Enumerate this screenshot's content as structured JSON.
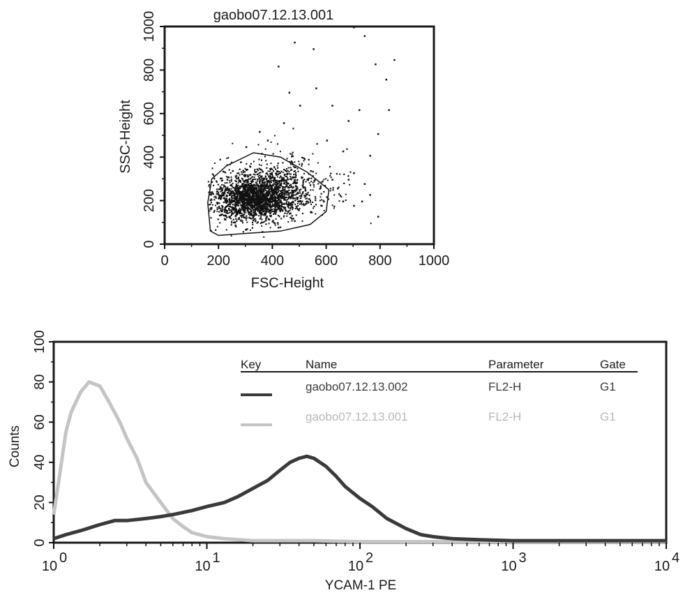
{
  "chart_data": [
    {
      "type": "scatter",
      "title": "gaobo07.12.13.001",
      "xlabel": "FSC-Height",
      "ylabel": "SSC-Height",
      "xlim": [
        0,
        1000
      ],
      "ylim": [
        0,
        1000
      ],
      "xticks": [
        "0",
        "200",
        "400",
        "600",
        "800",
        "1000"
      ],
      "yticks": [
        "0",
        "200",
        "400",
        "600",
        "800",
        "1000"
      ],
      "grid": false,
      "dense_cluster": {
        "x_center": 330,
        "y_center": 210,
        "x_spread": 75,
        "y_spread": 50
      },
      "points": [
        [
          420,
          820
        ],
        [
          480,
          930
        ],
        [
          550,
          900
        ],
        [
          700,
          1000
        ],
        [
          740,
          960
        ],
        [
          780,
          830
        ],
        [
          850,
          850
        ],
        [
          820,
          760
        ],
        [
          830,
          620
        ],
        [
          790,
          510
        ],
        [
          760,
          410
        ],
        [
          720,
          620
        ],
        [
          560,
          720
        ],
        [
          620,
          640
        ],
        [
          680,
          570
        ],
        [
          500,
          640
        ],
        [
          460,
          700
        ],
        [
          440,
          560
        ],
        [
          600,
          480
        ],
        [
          660,
          430
        ],
        [
          700,
          330
        ],
        [
          740,
          280
        ],
        [
          620,
          300
        ],
        [
          540,
          340
        ],
        [
          480,
          300
        ],
        [
          520,
          250
        ],
        [
          600,
          220
        ],
        [
          660,
          200
        ],
        [
          700,
          180
        ],
        [
          760,
          230
        ],
        [
          380,
          480
        ],
        [
          350,
          520
        ],
        [
          300,
          450
        ],
        [
          280,
          380
        ],
        [
          250,
          340
        ],
        [
          230,
          300
        ],
        [
          210,
          250
        ],
        [
          200,
          170
        ],
        [
          220,
          120
        ],
        [
          260,
          90
        ],
        [
          300,
          70
        ],
        [
          360,
          60
        ],
        [
          420,
          80
        ],
        [
          480,
          110
        ],
        [
          540,
          150
        ],
        [
          580,
          180
        ],
        [
          640,
          260
        ],
        [
          680,
          300
        ],
        [
          730,
          200
        ],
        [
          790,
          130
        ]
      ]
    },
    {
      "type": "line",
      "xlabel": "YCAM-1 PE",
      "ylabel": "Counts",
      "xscale": "log",
      "xlim": [
        1,
        10000
      ],
      "ylim": [
        0,
        100
      ],
      "xticks": [
        "10^0",
        "10^1",
        "10^2",
        "10^3",
        "10^4"
      ],
      "yticks": [
        "0",
        "20",
        "40",
        "60",
        "80",
        "100"
      ],
      "grid": false,
      "legend": {
        "position": "top-right",
        "headers": [
          "Key",
          "Name",
          "Parameter",
          "Gate"
        ],
        "rows": [
          {
            "name": "gaobo07.12.13.002",
            "parameter": "FL2-H",
            "gate": "G1",
            "color": "#3a3a3a"
          },
          {
            "name": "gaobo07.12.13.001",
            "parameter": "FL2-H",
            "gate": "G1",
            "color": "#c4c4c4"
          }
        ]
      },
      "series": [
        {
          "name": "gaobo07.12.13.002",
          "color": "#3a3a3a",
          "x": [
            1,
            1.2,
            1.5,
            2,
            2.5,
            3,
            4,
            5,
            6,
            8,
            10,
            13,
            16,
            20,
            25,
            30,
            35,
            40,
            45,
            50,
            60,
            70,
            80,
            100,
            120,
            150,
            200,
            250,
            300,
            400,
            600,
            1000,
            2000,
            5000,
            10000
          ],
          "y": [
            2,
            4,
            6,
            9,
            11,
            11,
            12,
            13,
            14,
            16,
            18,
            20,
            23,
            27,
            31,
            36,
            40,
            42,
            43,
            42,
            38,
            33,
            28,
            22,
            18,
            12,
            7,
            4,
            3,
            2,
            1.5,
            1,
            1,
            1,
            1
          ]
        },
        {
          "name": "gaobo07.12.13.001",
          "color": "#c4c4c4",
          "x": [
            1,
            1.1,
            1.2,
            1.3,
            1.5,
            1.7,
            2,
            2.3,
            2.7,
            3,
            3.5,
            4,
            5,
            6,
            7,
            8,
            10,
            13,
            20,
            50,
            100,
            1000,
            10000
          ],
          "y": [
            14,
            35,
            55,
            65,
            75,
            80,
            78,
            70,
            60,
            52,
            42,
            30,
            20,
            12,
            8,
            5,
            3,
            2,
            1,
            1,
            0.5,
            0.5,
            0.5
          ]
        }
      ]
    }
  ]
}
